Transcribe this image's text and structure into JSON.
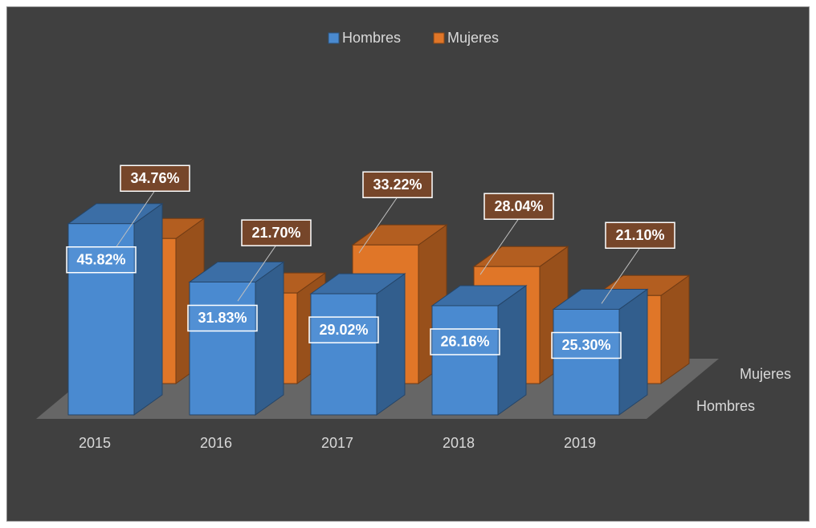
{
  "chart_data": {
    "type": "bar3d",
    "categories": [
      "2015",
      "2016",
      "2017",
      "2018",
      "2019"
    ],
    "series": [
      {
        "name": "Hombres",
        "color": "#4a8ad0",
        "values": [
          45.82,
          31.83,
          29.02,
          26.16,
          25.3
        ],
        "value_labels": [
          "45.82%",
          "31.83%",
          "29.02%",
          "26.16%",
          "25.30%"
        ]
      },
      {
        "name": "Mujeres",
        "color": "#e07628",
        "values": [
          34.76,
          21.7,
          33.22,
          28.04,
          21.1
        ],
        "value_labels": [
          "34.76%",
          "21.70%",
          "33.22%",
          "28.04%",
          "21.10%"
        ]
      }
    ],
    "ylim": [
      0,
      50
    ],
    "legend": "top"
  }
}
